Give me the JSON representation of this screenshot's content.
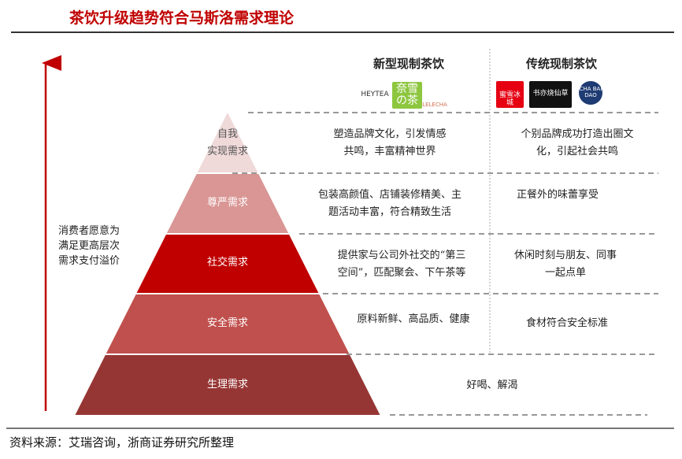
{
  "title": "茶饮升级趋势符合马斯洛需求理论",
  "columns": {
    "new": "新型现制茶饮",
    "traditional": "传统现制茶饮"
  },
  "logos": {
    "new": [
      "HEYTEA",
      "奈雪の茶",
      "LELECHA"
    ],
    "traditional": [
      "蜜雪冰城",
      "书亦烧仙草",
      "CHA BAI DAO"
    ]
  },
  "side_note": [
    "消费者愿意为",
    "满足更高层次",
    "需求支付溢价"
  ],
  "levels": [
    {
      "name": "自我实现需求",
      "name_lines": [
        "自我",
        "实现需求"
      ],
      "color": "#f0d9d9",
      "new": [
        "塑造品牌文化，引发情感",
        "共鸣，丰富精神世界"
      ],
      "traditional": [
        "个别品牌成功打造出圈文",
        "化，引起社会共鸣"
      ]
    },
    {
      "name": "尊严需求",
      "color": "#d99694",
      "new": [
        "包装高颜值、店铺装修精美、主",
        "题活动丰富，符合精致生活"
      ],
      "traditional": [
        "正餐外的味蕾享受"
      ]
    },
    {
      "name": "社交需求",
      "color": "#c00000",
      "new": [
        "提供家与公司外社交的“第三",
        "空间”，匹配聚会、下午茶等"
      ],
      "traditional": [
        "休闲时刻与朋友、同事",
        "一起点单"
      ]
    },
    {
      "name": "安全需求",
      "color": "#c0504d",
      "new": [
        "原料新鲜、高品质、健康"
      ],
      "traditional": [
        "食材符合安全标准"
      ]
    },
    {
      "name": "生理需求",
      "color": "#963634",
      "shared": "好喝、解渴"
    }
  ],
  "source": "资料来源：艾瑞咨询，浙商证券研究所整理",
  "accent": "#c00000"
}
